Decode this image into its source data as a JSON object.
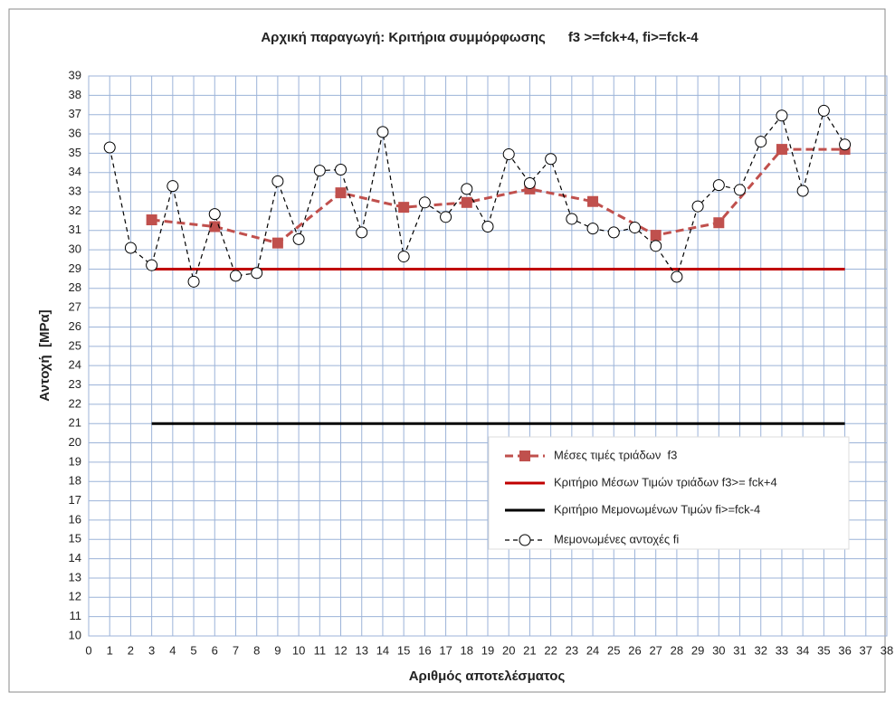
{
  "chart_data": {
    "type": "line",
    "title": "Αρχική παραγωγή: Κριτήρια συμμόρφωσης      f3 >=fck+4, fi>=fck-4",
    "x_label": "Αριθμός αποτελέσματος",
    "y_label": "Αντοχή  [MPα]",
    "xlim": [
      0,
      38
    ],
    "xticks": [
      0,
      1,
      2,
      3,
      4,
      5,
      6,
      7,
      8,
      9,
      10,
      11,
      12,
      13,
      14,
      15,
      16,
      17,
      18,
      19,
      20,
      21,
      22,
      23,
      24,
      25,
      26,
      27,
      28,
      29,
      30,
      31,
      32,
      33,
      34,
      35,
      36,
      37,
      38
    ],
    "ylim": [
      10,
      39
    ],
    "yticks": [
      10,
      11,
      12,
      13,
      14,
      15,
      16,
      17,
      18,
      19,
      20,
      21,
      22,
      23,
      24,
      25,
      26,
      27,
      28,
      29,
      30,
      31,
      32,
      33,
      34,
      35,
      36,
      37,
      38,
      39
    ],
    "grid": true,
    "legend": "lower right",
    "series": [
      {
        "name": "Μέσες τιμές τριάδων  f3",
        "color": "#c0504d",
        "style": "dashed",
        "marker": "square",
        "x": [
          3,
          6,
          9,
          12,
          15,
          18,
          21,
          24,
          27,
          30,
          33,
          36
        ],
        "values": [
          31.55,
          31.2,
          30.35,
          32.95,
          32.2,
          32.45,
          33.15,
          32.5,
          30.75,
          31.4,
          35.2,
          35.2
        ]
      },
      {
        "name": "Κριτήριο Μέσων Τιμών τριάδων f3>= fck+4",
        "color": "#c00000",
        "style": "solid",
        "marker": "none",
        "x": [
          3,
          36
        ],
        "values": [
          29,
          29
        ]
      },
      {
        "name": "Κριτήριο Μεμονωμένων Τιμών fi>=fck-4",
        "color": "#000000",
        "style": "solid",
        "marker": "none",
        "x": [
          3,
          36
        ],
        "values": [
          21,
          21
        ]
      },
      {
        "name": "Μεμονωμένες αντοχές fi",
        "color": "#000000",
        "style": "dashed",
        "marker": "circle",
        "x": [
          1,
          2,
          3,
          4,
          5,
          6,
          7,
          8,
          9,
          10,
          11,
          12,
          13,
          14,
          15,
          16,
          17,
          18,
          19,
          20,
          21,
          22,
          23,
          24,
          25,
          26,
          27,
          28,
          29,
          30,
          31,
          32,
          33,
          34,
          35,
          36
        ],
        "values": [
          35.3,
          30.1,
          29.2,
          33.3,
          28.35,
          31.85,
          28.65,
          28.8,
          33.55,
          30.55,
          34.1,
          34.15,
          30.9,
          36.1,
          29.65,
          32.45,
          31.7,
          33.15,
          31.2,
          34.95,
          33.45,
          34.7,
          31.6,
          31.1,
          30.9,
          31.15,
          30.2,
          28.6,
          32.25,
          33.35,
          33.1,
          35.6,
          36.95,
          33.05,
          37.2,
          35.45
        ]
      }
    ]
  }
}
